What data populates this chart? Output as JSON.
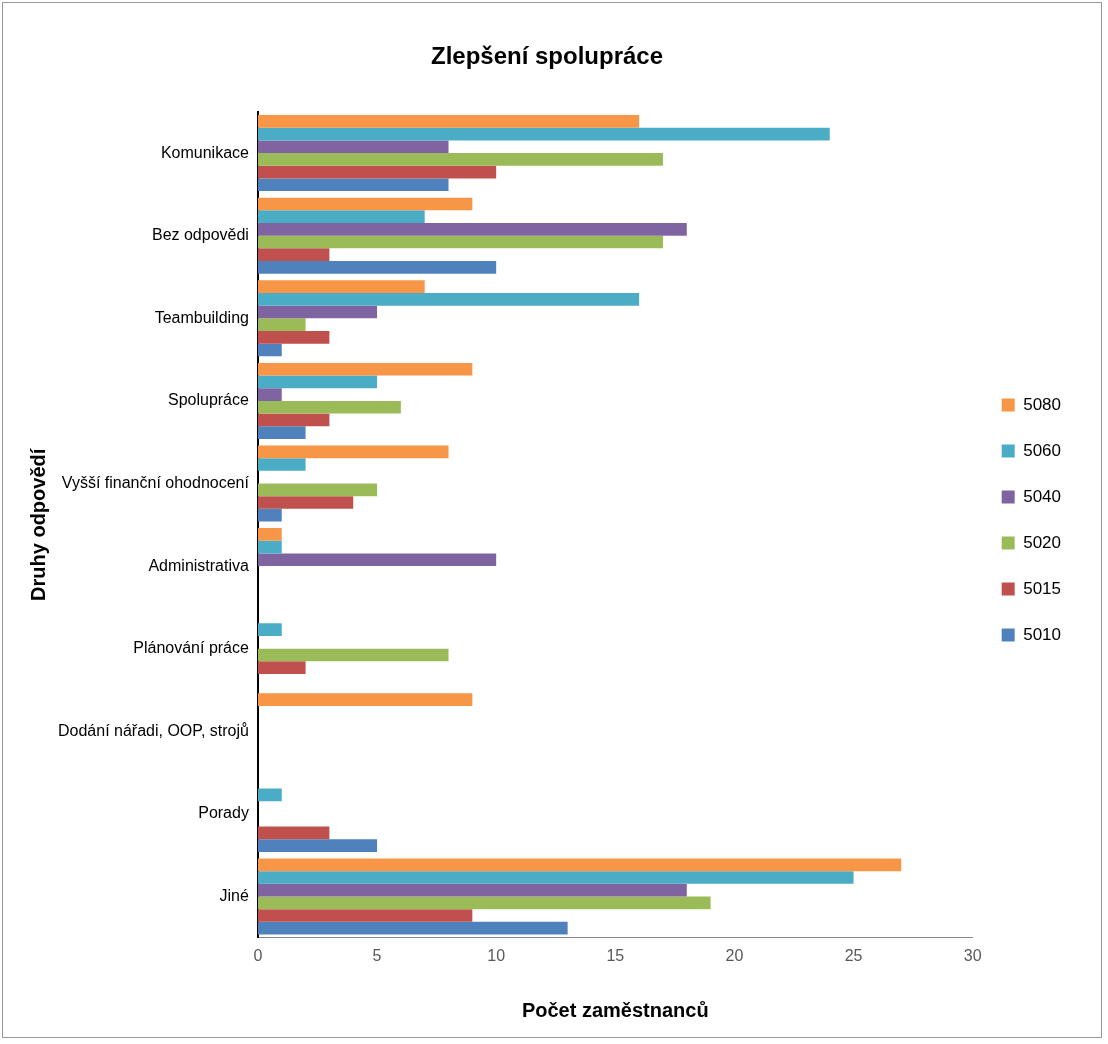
{
  "chart_data": {
    "type": "bar",
    "orientation": "horizontal",
    "title": "Zlepšení spolupráce",
    "xlabel": "Počet zaměstnanců",
    "ylabel": "Druhy odpovědí",
    "categories": [
      "Komunikace",
      "Bez odpovědi",
      "Teambuilding",
      "Spolupráce",
      "Vyšší finanční ohodnocení",
      "Administrativa",
      "Plánování práce",
      "Dodání nářadi, OOP, strojů",
      "Porady",
      "Jiné"
    ],
    "series": [
      {
        "name": "5080",
        "color": "#f79646",
        "values": [
          16,
          9,
          7,
          9,
          8,
          1,
          0,
          9,
          0,
          27
        ]
      },
      {
        "name": "5060",
        "color": "#4bacc6",
        "values": [
          24,
          7,
          16,
          5,
          2,
          1,
          1,
          0,
          1,
          25
        ]
      },
      {
        "name": "5040",
        "color": "#8064a2",
        "values": [
          8,
          18,
          5,
          1,
          0,
          10,
          0,
          0,
          0,
          18
        ]
      },
      {
        "name": "5020",
        "color": "#9bbb59",
        "values": [
          17,
          17,
          2,
          6,
          5,
          0,
          8,
          0,
          0,
          19
        ]
      },
      {
        "name": "5015",
        "color": "#c0504d",
        "values": [
          10,
          3,
          3,
          3,
          4,
          0,
          2,
          0,
          3,
          9
        ]
      },
      {
        "name": "5010",
        "color": "#4f81bd",
        "values": [
          8,
          10,
          1,
          2,
          1,
          0,
          0,
          0,
          5,
          13
        ]
      }
    ],
    "xlim": [
      0,
      30
    ],
    "xticks": [
      0,
      5,
      10,
      15,
      20,
      25,
      30
    ],
    "grid": false,
    "legend": "right"
  }
}
